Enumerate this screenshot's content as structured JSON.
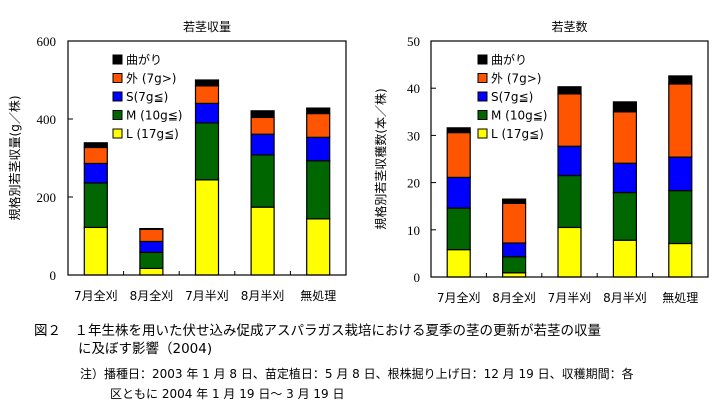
{
  "chart_data": [
    {
      "type": "bar",
      "stacked": true,
      "title": "若茎収量",
      "ylabel": "規格別若茎収量(g／株)",
      "xlabel": "",
      "ylim": [
        0,
        600
      ],
      "yticks": [
        0,
        200,
        400,
        600
      ],
      "categories": [
        "7月全刈",
        "8月全刈",
        "7月半刈",
        "8月半刈",
        "無処理"
      ],
      "legend_position": "top-left",
      "series": [
        {
          "name": "L (17g≦)",
          "color": "#FFFF00",
          "values": [
            122,
            17,
            244,
            174,
            144
          ]
        },
        {
          "name": "M (10g≦)",
          "color": "#006600",
          "values": [
            114,
            41,
            146,
            134,
            149
          ]
        },
        {
          "name": "S(7g≦)",
          "color": "#0000FF",
          "values": [
            50,
            28,
            50,
            53,
            60
          ]
        },
        {
          "name": "外 (7g>)",
          "color": "#FF5500",
          "values": [
            41,
            31,
            45,
            43,
            61
          ]
        },
        {
          "name": "曲がり",
          "color": "#000000",
          "values": [
            12,
            2,
            15,
            17,
            14
          ]
        }
      ]
    },
    {
      "type": "bar",
      "stacked": true,
      "title": "若茎数",
      "ylabel": "規格別若茎収穫数(本／株)",
      "xlabel": "",
      "ylim": [
        0,
        50
      ],
      "yticks": [
        0,
        10,
        20,
        30,
        40,
        50
      ],
      "categories": [
        "7月全刈",
        "8月全刈",
        "7月半刈",
        "8月半刈",
        "無処理"
      ],
      "legend_position": "top-left",
      "series": [
        {
          "name": "L (17g≦)",
          "color": "#FFFF00",
          "values": [
            5.8,
            0.9,
            10.5,
            7.8,
            7.1
          ]
        },
        {
          "name": "M (10g≦)",
          "color": "#006600",
          "values": [
            8.8,
            3.4,
            11.0,
            10.1,
            11.2
          ]
        },
        {
          "name": "S(7g≦)",
          "color": "#0000FF",
          "values": [
            6.5,
            2.9,
            6.2,
            6.2,
            7.1
          ]
        },
        {
          "name": "外 (7g>)",
          "color": "#FF5500",
          "values": [
            9.5,
            8.4,
            11.1,
            10.9,
            15.5
          ]
        },
        {
          "name": "曲がり",
          "color": "#000000",
          "values": [
            1.0,
            0.9,
            1.5,
            2.1,
            1.7
          ]
        }
      ]
    }
  ],
  "caption": {
    "line1": "図２　１年生株を用いた伏せ込み促成アスパラガス栽培における夏季の茎の更新が若茎の収量",
    "line2": "に及ぼす影響（2004)",
    "note1": "注）播種日：2003 年 1 月 8 日、苗定植日：5 月 8 日、根株掘り上げ日：12 月 19 日、収穫期間：各",
    "note2": "区ともに 2004 年 1 月 19 日～ 3 月 19 日"
  }
}
